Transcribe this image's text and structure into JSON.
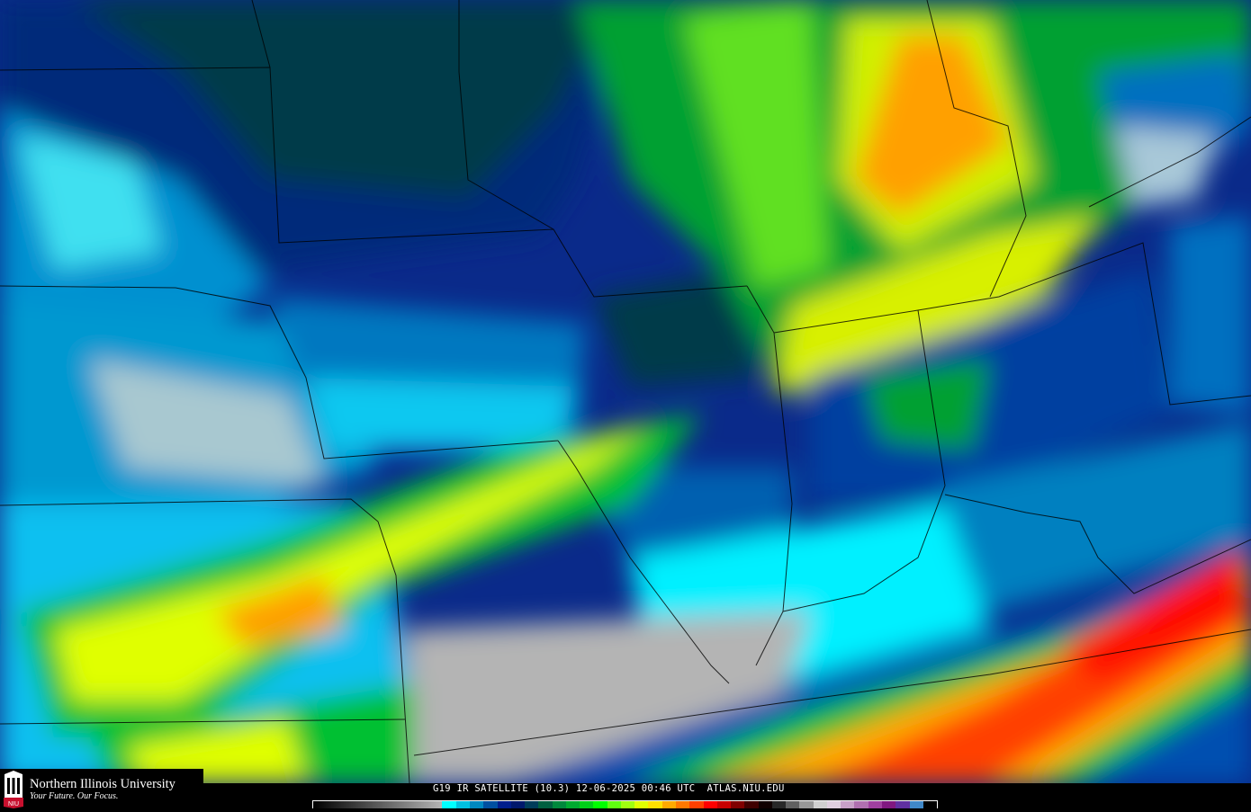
{
  "caption": "G19 IR SATELLITE (10.3) 12-06-2025 00:46 UTC  ATLAS.NIU.EDU",
  "logo": {
    "university": "Northern Illinois University",
    "tagline": "Your Future. Our Focus.",
    "seal_text": "NIU"
  },
  "colorbar": {
    "gray_ramp": [
      "#000000",
      "#b4b4b4"
    ],
    "colors": [
      "#00ffff",
      "#00c0e0",
      "#0088c0",
      "#0050a0",
      "#001e8c",
      "#00186c",
      "#003c5a",
      "#006040",
      "#00883c",
      "#00aa30",
      "#00d018",
      "#00ff00",
      "#60ff10",
      "#a0ff10",
      "#e0ff00",
      "#ffe000",
      "#ffaa00",
      "#ff7800",
      "#ff4000",
      "#ff0000",
      "#c80000",
      "#800000",
      "#400000",
      "#100000",
      "#282828",
      "#606060",
      "#989898",
      "#d0d0d0",
      "#e0d0e0",
      "#c8a0c8",
      "#b070b0",
      "#a040a0",
      "#801880",
      "#6030a0",
      "#4088c8",
      "#000000"
    ]
  }
}
